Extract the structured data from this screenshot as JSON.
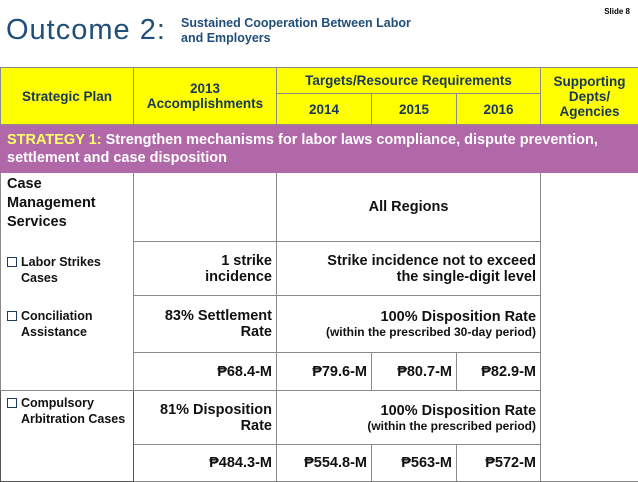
{
  "header": {
    "title": "Outcome 2:",
    "subtitle": "Sustained Cooperation Between Labor and Employers",
    "slide_number": "Slide 8"
  },
  "table_header": {
    "strategic_plan": "Strategic Plan",
    "accomplishments": "2013 Accomplishments",
    "targets": "Targets/Resource Requirements",
    "years": [
      "2014",
      "2015",
      "2016"
    ],
    "supporting": "Supporting Depts/ Agencies"
  },
  "strategy": {
    "label": "STRATEGY 1:",
    "text": "Strengthen mechanisms for labor laws compliance, dispute prevention, settlement and case disposition"
  },
  "left_col": {
    "heading": "Case Management Services",
    "items": [
      "Labor Strikes Cases",
      "Conciliation Assistance",
      "Compulsory Arbitration Cases"
    ]
  },
  "rows": {
    "all_regions": "All Regions",
    "strike_2013": "1 strike incidence",
    "strike_target": "Strike incidence not to exceed the single-digit level",
    "concil_2013": "83% Settlement Rate",
    "concil_target_main": "100% Disposition Rate",
    "concil_target_sub": "(within the prescribed 30-day period)",
    "concil_budget": [
      "₱68.4-M",
      "₱79.6-M",
      "₱80.7-M",
      "₱82.9-M"
    ],
    "arb_2013": "81% Disposition Rate",
    "arb_target_main": "100% Disposition Rate",
    "arb_target_sub": "(within the prescribed period)",
    "arb_budget": [
      "₱484.3-M",
      "₱554.8-M",
      "₱563-M",
      "₱572-M"
    ]
  }
}
